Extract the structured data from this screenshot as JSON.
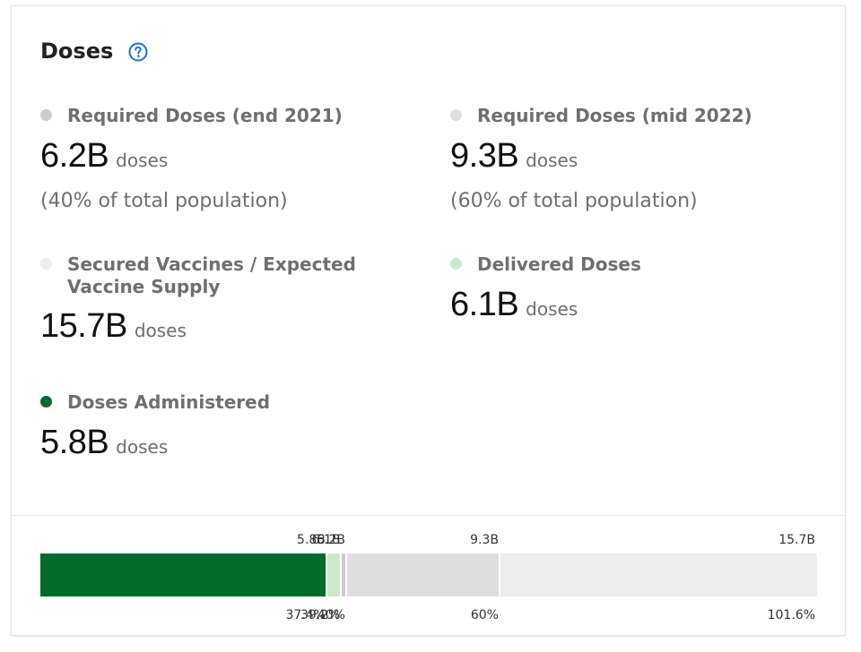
{
  "card": {
    "title": "Doses",
    "help_icon": "question-circle-icon"
  },
  "metrics": [
    {
      "label": "Required Doses (end 2021)",
      "value": "6.2B",
      "unit": "doses",
      "note": "(40% of total population)",
      "dot_color": "#cccccc"
    },
    {
      "label": "Required Doses (mid 2022)",
      "value": "9.3B",
      "unit": "doses",
      "note": "(60% of total population)",
      "dot_color": "#dedede"
    },
    {
      "label": "Secured Vaccines / Expected Vaccine Supply",
      "value": "15.7B",
      "unit": "doses",
      "dot_color": "#ededed"
    },
    {
      "label": "Delivered Doses",
      "value": "6.1B",
      "unit": "doses",
      "dot_color": "#c8eccb"
    },
    {
      "label": "Doses Administered",
      "value": "5.8B",
      "unit": "doses",
      "dot_color": "#006b2b"
    }
  ],
  "colors": {
    "administered": "#006b2b",
    "delivered": "#c8eccb",
    "required_end_2021": "#cccccc",
    "required_mid_2022": "#dedede",
    "secured": "#ededed",
    "accent": "#1a73c9"
  },
  "bar": {
    "max": 15.7,
    "segments": [
      {
        "value": 5.8,
        "top_label": "5.8B",
        "bottom_label": "37.4%",
        "color": "#006b2b"
      },
      {
        "value": 6.1,
        "top_label": "6.1B",
        "bottom_label": "39.2%",
        "color": "#c8eccb"
      },
      {
        "value": 6.2,
        "top_label": "6.2B",
        "bottom_label": "40%",
        "color": "#cccccc"
      },
      {
        "value": 9.3,
        "top_label": "9.3B",
        "bottom_label": "60%",
        "color": "#dedede"
      },
      {
        "value": 15.7,
        "top_label": "15.7B",
        "bottom_label": "101.6%",
        "color": "#ededed"
      }
    ]
  }
}
